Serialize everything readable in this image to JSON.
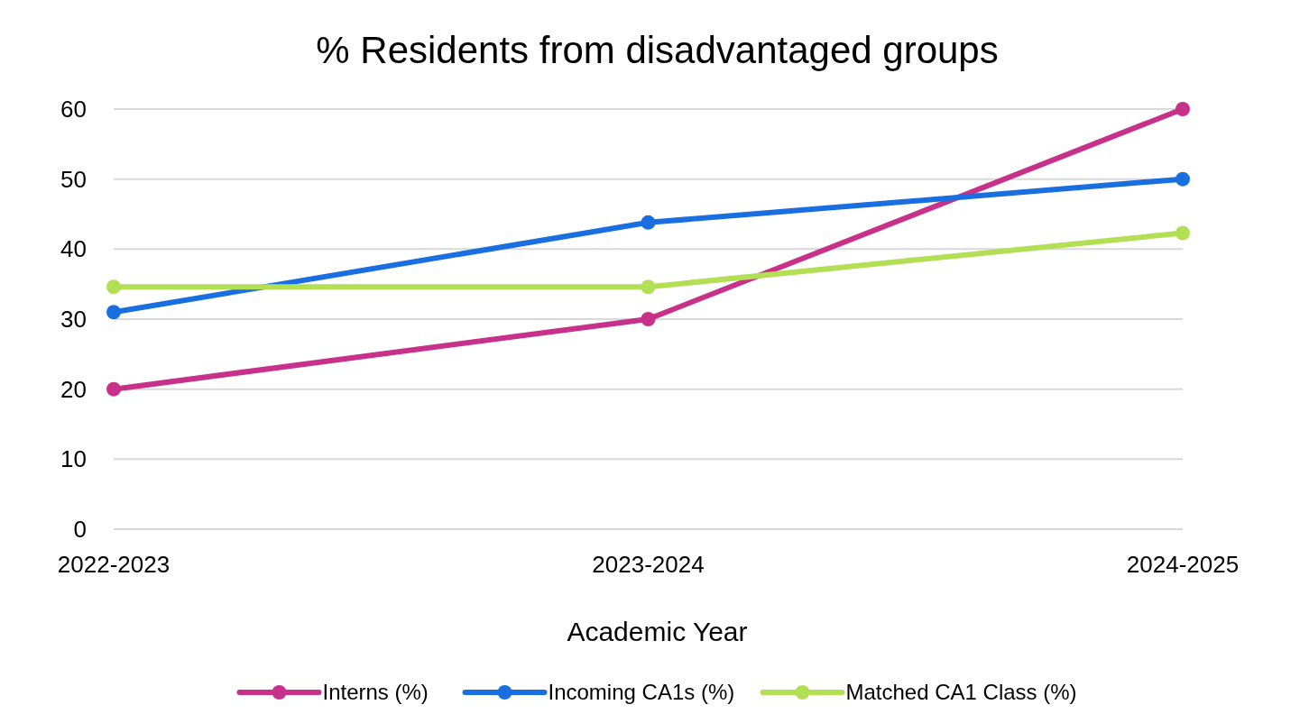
{
  "chart_data": {
    "type": "line",
    "title": "% Residents from disadvantaged groups",
    "xlabel": "Academic Year",
    "categories": [
      "2022-2023",
      "2023-2024",
      "2024-2025"
    ],
    "series": [
      {
        "name": "Interns (%)",
        "color": "#c8318a",
        "values": [
          20,
          30,
          60
        ]
      },
      {
        "name": "Incoming CA1s (%)",
        "color": "#1a6fe0",
        "values": [
          31,
          43.8,
          50
        ]
      },
      {
        "name": "Matched CA1 Class (%)",
        "color": "#b3df55",
        "values": [
          34.6,
          34.6,
          42.3
        ]
      }
    ],
    "ylim": [
      0,
      60
    ],
    "yticks": [
      0,
      10,
      20,
      30,
      40,
      50,
      60
    ],
    "grid": "y",
    "legend": "bottom",
    "marker": "circle",
    "line_style": "solid"
  }
}
